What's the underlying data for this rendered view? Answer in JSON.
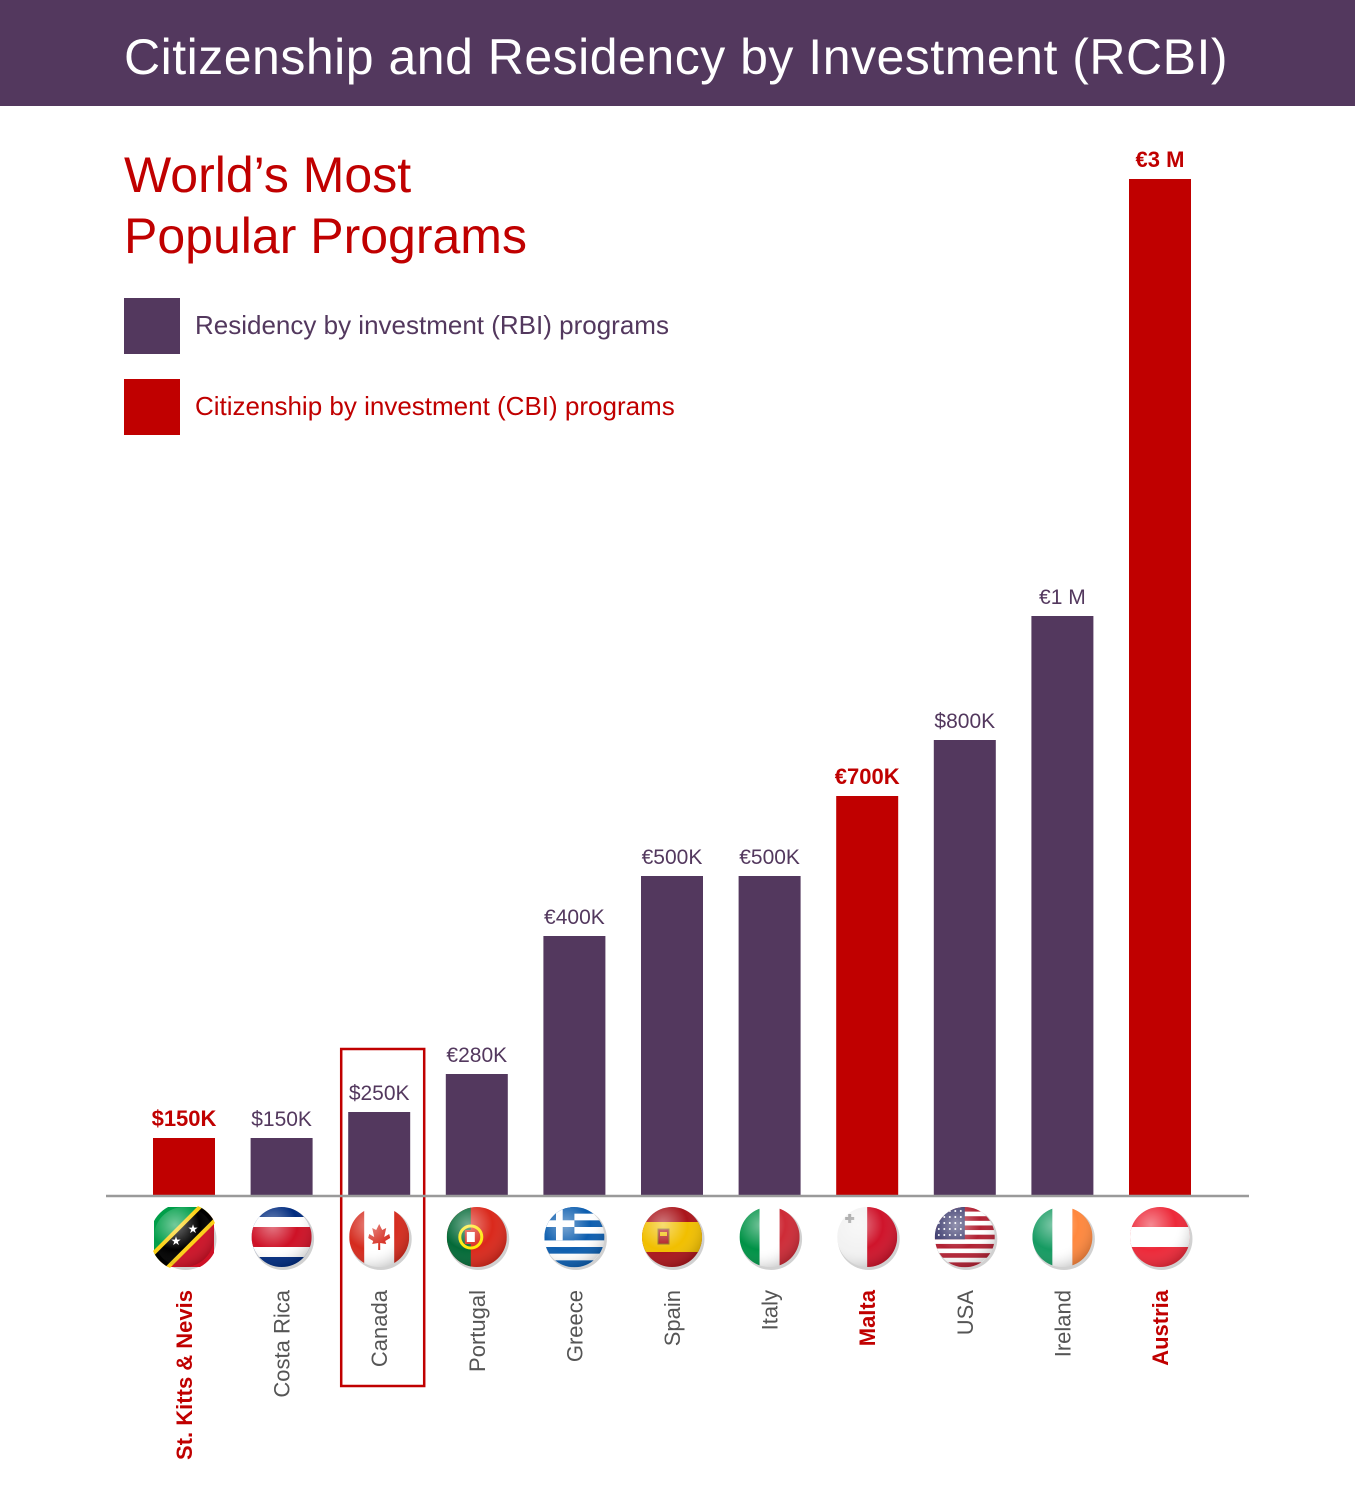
{
  "header": {
    "title": "Citizenship and Residency by Investment  (RCBI)"
  },
  "subtitle": {
    "line1": "World’s Most",
    "line2": "Popular Programs"
  },
  "legend": {
    "rbi_label": "Residency by investment (RBI) programs",
    "cbi_label": "Citizenship by investment (CBI) programs"
  },
  "colors": {
    "banner": "#53385e",
    "rbi": "#53385e",
    "cbi": "#c00000",
    "baseline": "#9a9a9a"
  },
  "chart_data": {
    "type": "bar",
    "categories": [
      "St. Kitts & Nevis",
      "Costa Rica",
      "Canada",
      "Portugal",
      "Greece",
      "Spain",
      "Italy",
      "Malta",
      "USA",
      "Ireland",
      "Austria"
    ],
    "values": [
      150000,
      150000,
      250000,
      280000,
      400000,
      500000,
      500000,
      700000,
      800000,
      1000000,
      3000000
    ],
    "value_labels": [
      "$150K",
      "$150K",
      "$250K",
      "€280K",
      "€400K",
      "€500K",
      "€500K",
      "€700K",
      "$800K",
      "€1 M",
      "€3 M"
    ],
    "program_types": [
      "CBI",
      "RBI",
      "RBI",
      "RBI",
      "RBI",
      "RBI",
      "RBI",
      "CBI",
      "RBI",
      "RBI",
      "CBI"
    ],
    "flags": [
      "st-kitts-nevis-flag-icon",
      "costa-rica-flag-icon",
      "canada-flag-icon",
      "portugal-flag-icon",
      "greece-flag-icon",
      "spain-flag-icon",
      "italy-flag-icon",
      "malta-flag-icon",
      "usa-flag-icon",
      "ireland-flag-icon",
      "austria-flag-icon"
    ],
    "highlighted_category": "Canada",
    "xlabel": "",
    "ylabel": "",
    "grid": false,
    "legend_position": "top-left"
  }
}
